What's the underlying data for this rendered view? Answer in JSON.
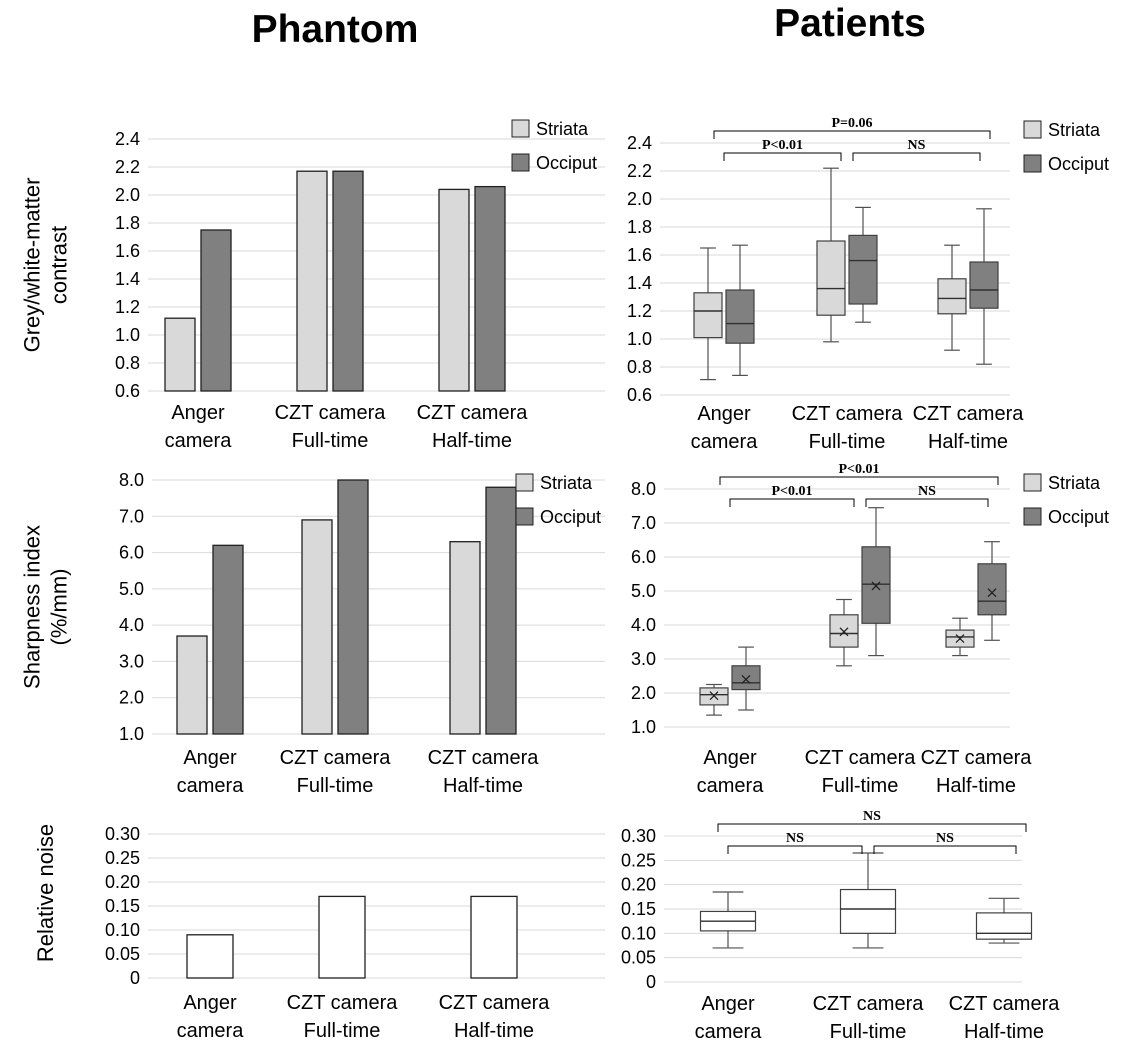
{
  "titles": {
    "left": "Phantom",
    "right": "Patients"
  },
  "colors": {
    "striata": "#d9d9d9",
    "occiput": "#808080",
    "noise": "#ffffff",
    "stroke": "#404040",
    "grid": "#d9d9d9"
  },
  "chart_data": [
    {
      "type": "bar",
      "panel": "phantom-contrast",
      "ylabel": [
        "Grey/white-matter",
        "contrast"
      ],
      "ylim": [
        0.6,
        2.4
      ],
      "yticks": [
        "0.6",
        "0.8",
        "1.0",
        "1.2",
        "1.4",
        "1.6",
        "1.8",
        "2.0",
        "2.2",
        "2.4"
      ],
      "categories": [
        [
          "Anger",
          "camera"
        ],
        [
          "CZT camera",
          "Full-time"
        ],
        [
          "CZT camera",
          "Half-time"
        ]
      ],
      "series": [
        {
          "name": "Striata",
          "values": [
            1.12,
            2.17,
            2.04
          ]
        },
        {
          "name": "Occiput",
          "values": [
            1.75,
            2.17,
            2.06
          ]
        }
      ],
      "legend": "top-right"
    },
    {
      "type": "bar",
      "panel": "phantom-sharpness",
      "ylabel": [
        "Sharpness index",
        "(%/mm)"
      ],
      "ylim": [
        1.0,
        8.0
      ],
      "yticks": [
        "1.0",
        "2.0",
        "3.0",
        "4.0",
        "5.0",
        "6.0",
        "7.0",
        "8.0"
      ],
      "categories": [
        [
          "Anger",
          "camera"
        ],
        [
          "CZT camera",
          "Full-time"
        ],
        [
          "CZT camera",
          "Half-time"
        ]
      ],
      "series": [
        {
          "name": "Striata",
          "values": [
            3.7,
            6.9,
            6.3
          ]
        },
        {
          "name": "Occiput",
          "values": [
            6.2,
            8.0,
            7.8
          ]
        }
      ],
      "legend": "top-right"
    },
    {
      "type": "bar",
      "panel": "phantom-noise",
      "ylabel": [
        "Relative noise"
      ],
      "ylim": [
        0,
        0.3
      ],
      "yticks": [
        "0",
        "0.05",
        "0.10",
        "0.15",
        "0.20",
        "0.25",
        "0.30"
      ],
      "categories": [
        [
          "Anger",
          "camera"
        ],
        [
          "CZT camera",
          "Full-time"
        ],
        [
          "CZT camera",
          "Half-time"
        ]
      ],
      "series": [
        {
          "values": [
            0.09,
            0.17,
            0.17
          ]
        }
      ]
    },
    {
      "type": "box",
      "panel": "patients-contrast",
      "ylim": [
        0.6,
        2.4
      ],
      "yticks": [
        "0.6",
        "0.8",
        "1.0",
        "1.2",
        "1.4",
        "1.6",
        "1.8",
        "2.0",
        "2.2",
        "2.4"
      ],
      "categories": [
        [
          "Anger",
          "camera"
        ],
        [
          "CZT camera",
          "Full-time"
        ],
        [
          "CZT camera",
          "Half-time"
        ]
      ],
      "series": [
        {
          "name": "Striata",
          "boxes": [
            {
              "min": 0.71,
              "q1": 1.01,
              "median": 1.2,
              "q3": 1.33,
              "max": 1.65
            },
            {
              "min": 0.98,
              "q1": 1.17,
              "median": 1.36,
              "q3": 1.7,
              "max": 2.22
            },
            {
              "min": 0.92,
              "q1": 1.18,
              "median": 1.29,
              "q3": 1.43,
              "max": 1.67
            }
          ]
        },
        {
          "name": "Occiput",
          "boxes": [
            {
              "min": 0.74,
              "q1": 0.97,
              "median": 1.11,
              "q3": 1.35,
              "max": 1.67
            },
            {
              "min": 1.12,
              "q1": 1.25,
              "median": 1.56,
              "q3": 1.74,
              "max": 1.94
            },
            {
              "min": 0.82,
              "q1": 1.22,
              "median": 1.35,
              "q3": 1.55,
              "max": 1.93
            }
          ]
        }
      ],
      "legend": "top-right",
      "annotations": [
        {
          "label": "P=0.06",
          "from": 0,
          "to": 2,
          "level": 2
        },
        {
          "label": "P<0.01",
          "from": 0,
          "to": 1,
          "level": 1
        },
        {
          "label": "NS",
          "from": 1,
          "to": 2,
          "level": 1
        }
      ]
    },
    {
      "type": "box",
      "panel": "patients-sharpness",
      "ylim": [
        1.0,
        8.0
      ],
      "yticks": [
        "1.0",
        "2.0",
        "3.0",
        "4.0",
        "5.0",
        "6.0",
        "7.0",
        "8.0"
      ],
      "categories": [
        [
          "Anger",
          "camera"
        ],
        [
          "CZT camera",
          "Full-time"
        ],
        [
          "CZT camera",
          "Half-time"
        ]
      ],
      "series": [
        {
          "name": "Striata",
          "boxes": [
            {
              "min": 1.35,
              "q1": 1.65,
              "median": 1.95,
              "q3": 2.15,
              "max": 2.25,
              "mean": 1.92
            },
            {
              "min": 2.8,
              "q1": 3.35,
              "median": 3.75,
              "q3": 4.3,
              "max": 4.75,
              "mean": 3.8
            },
            {
              "min": 3.1,
              "q1": 3.35,
              "median": 3.65,
              "q3": 3.85,
              "max": 4.2,
              "mean": 3.6
            }
          ]
        },
        {
          "name": "Occiput",
          "boxes": [
            {
              "min": 1.5,
              "q1": 2.1,
              "median": 2.3,
              "q3": 2.8,
              "max": 3.35,
              "mean": 2.4
            },
            {
              "min": 3.1,
              "q1": 4.05,
              "median": 5.2,
              "q3": 6.3,
              "max": 7.45,
              "mean": 5.15
            },
            {
              "min": 3.55,
              "q1": 4.3,
              "median": 4.7,
              "q3": 5.8,
              "max": 6.45,
              "mean": 4.95
            }
          ]
        }
      ],
      "legend": "top-right",
      "annotations": [
        {
          "label": "P<0.01",
          "from": 0,
          "to": 2,
          "level": 2
        },
        {
          "label": "P<0.01",
          "from": 0,
          "to": 1,
          "level": 1
        },
        {
          "label": "NS",
          "from": 1,
          "to": 2,
          "level": 1
        }
      ]
    },
    {
      "type": "box",
      "panel": "patients-noise",
      "ylim": [
        0,
        0.3
      ],
      "yticks": [
        "0",
        "0.05",
        "0.10",
        "0.15",
        "0.20",
        "0.25",
        "0.30"
      ],
      "categories": [
        [
          "Anger",
          "camera"
        ],
        [
          "CZT camera",
          "Full-time"
        ],
        [
          "CZT camera",
          "Half-time"
        ]
      ],
      "series": [
        {
          "boxes": [
            {
              "min": 0.07,
              "q1": 0.105,
              "median": 0.125,
              "q3": 0.145,
              "max": 0.185
            },
            {
              "min": 0.07,
              "q1": 0.1,
              "median": 0.15,
              "q3": 0.19,
              "max": 0.265
            },
            {
              "min": 0.08,
              "q1": 0.088,
              "median": 0.1,
              "q3": 0.142,
              "max": 0.172
            }
          ]
        }
      ],
      "annotations": [
        {
          "label": "NS",
          "from": 0,
          "to": 2,
          "level": 2
        },
        {
          "label": "NS",
          "from": 0,
          "to": 1,
          "level": 1
        },
        {
          "label": "NS",
          "from": 1,
          "to": 2,
          "level": 1
        }
      ]
    }
  ]
}
